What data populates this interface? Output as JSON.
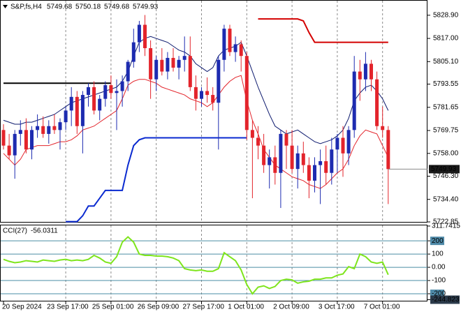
{
  "chart_data": [
    {
      "type": "candlestick",
      "title": "S&P,fs,H4",
      "ohlc": [
        5749.68,
        5750.18,
        5749.68,
        5749.93
      ],
      "categories": [
        "20 Sep 2024",
        null,
        null,
        null,
        null,
        null,
        null,
        null,
        null,
        null,
        null,
        "23 Sep 17:00",
        null,
        null,
        null,
        null,
        null,
        null,
        null,
        "25 Sep 01:00",
        null,
        null,
        null,
        null,
        null,
        null,
        null,
        "26 Sep 09:00",
        null,
        null,
        null,
        null,
        null,
        null,
        null,
        "27 Sep 17:00",
        null,
        null,
        null,
        null,
        null,
        null,
        null,
        "1 Oct 01:00",
        null,
        null,
        null,
        null,
        null,
        null,
        null,
        "2 Oct 09:00",
        null,
        null,
        null,
        null,
        null,
        null,
        null,
        "3 Oct 17:00",
        null,
        null,
        null,
        null,
        null,
        null,
        null,
        "7 Oct 01:00",
        null
      ],
      "open": [
        5770,
        5762,
        5757,
        5768,
        5770,
        5760,
        5770,
        5772,
        5768,
        5772,
        5770,
        5774,
        5780,
        5787,
        5772,
        5788,
        5792,
        5780,
        5786,
        5793,
        5789,
        5790,
        5795,
        5805,
        5815,
        5824,
        5812,
        5796,
        5806,
        5800,
        5807,
        5802,
        5806,
        5808,
        5792,
        5786,
        5790,
        5788,
        5784,
        5806,
        5822,
        5810,
        5814,
        5808,
        5770,
        5766,
        5762,
        5752,
        5756,
        5748,
        5768,
        5762,
        5750,
        5758,
        5752,
        5744,
        5752,
        5754,
        5748,
        5760,
        5766,
        5758,
        5770,
        5800,
        5796,
        5804,
        5796,
        5772,
        5770
      ],
      "high": [
        5773,
        5768,
        5770,
        5775,
        5776,
        5772,
        5778,
        5777,
        5775,
        5778,
        5776,
        5782,
        5792,
        5790,
        5790,
        5794,
        5795,
        5788,
        5795,
        5798,
        5796,
        5798,
        5806,
        5822,
        5826,
        5829,
        5816,
        5808,
        5812,
        5810,
        5812,
        5808,
        5818,
        5818,
        5798,
        5792,
        5797,
        5792,
        5808,
        5824,
        5824,
        5818,
        5816,
        5810,
        5775,
        5772,
        5768,
        5760,
        5762,
        5770,
        5770,
        5770,
        5762,
        5764,
        5756,
        5756,
        5760,
        5762,
        5766,
        5768,
        5772,
        5772,
        5808,
        5806,
        5810,
        5806,
        5800,
        5782,
        5772
      ],
      "low": [
        5760,
        5755,
        5745,
        5762,
        5758,
        5755,
        5766,
        5766,
        5763,
        5768,
        5760,
        5770,
        5772,
        5768,
        5758,
        5782,
        5778,
        5775,
        5782,
        5786,
        5770,
        5782,
        5790,
        5802,
        5810,
        5808,
        5786,
        5790,
        5798,
        5796,
        5800,
        5796,
        5800,
        5790,
        5780,
        5782,
        5784,
        5780,
        5760,
        5800,
        5808,
        5805,
        5800,
        5765,
        5735,
        5755,
        5748,
        5740,
        5742,
        5730,
        5750,
        5748,
        5740,
        5748,
        5735,
        5738,
        5732,
        5742,
        5742,
        5748,
        5746,
        5752,
        5766,
        5785,
        5790,
        5790,
        5770,
        5766,
        5732
      ],
      "close": [
        5762,
        5757,
        5768,
        5770,
        5760,
        5770,
        5772,
        5768,
        5772,
        5770,
        5774,
        5780,
        5787,
        5772,
        5788,
        5792,
        5780,
        5786,
        5793,
        5789,
        5790,
        5795,
        5805,
        5815,
        5824,
        5812,
        5796,
        5806,
        5800,
        5807,
        5802,
        5806,
        5808,
        5792,
        5786,
        5790,
        5788,
        5784,
        5806,
        5822,
        5810,
        5814,
        5808,
        5770,
        5766,
        5762,
        5752,
        5756,
        5748,
        5768,
        5762,
        5750,
        5758,
        5752,
        5744,
        5752,
        5754,
        5748,
        5760,
        5766,
        5758,
        5770,
        5800,
        5796,
        5804,
        5796,
        5772,
        5770,
        5749.93
      ],
      "up_color": "#1d2bb0",
      "down_color": "#e3242b",
      "series": [
        {
          "color": "#0d1a6e",
          "values": [
            5775,
            5774,
            5773,
            5773,
            5774,
            5774,
            5775,
            5776,
            5777,
            5778,
            5780,
            5782,
            5784,
            5785,
            5786,
            5787,
            5788,
            5789,
            5790,
            5791,
            5792,
            5795,
            5800,
            5808,
            5815,
            5817,
            5818,
            5817,
            5816,
            5815,
            5813,
            5811,
            5810,
            5808,
            5804,
            5802,
            5800,
            5802,
            5808,
            5811,
            5812,
            5813,
            5815,
            5808,
            5800,
            5792,
            5785,
            5778,
            5772,
            5770,
            5768,
            5769,
            5770,
            5768,
            5766,
            5764,
            5763,
            5764,
            5765,
            5767,
            5770,
            5776,
            5785,
            5789,
            5792,
            5793,
            5790,
            5786,
            5780
          ]
        },
        {
          "color": "#e3242b",
          "values": [
            5758,
            5755,
            5752,
            5755,
            5760,
            5761,
            5762,
            5762,
            5762,
            5763,
            5764,
            5764,
            5765,
            5767,
            5770,
            5771,
            5772,
            5774,
            5776,
            5778,
            5780,
            5786,
            5793,
            5795,
            5796,
            5796,
            5795,
            5794,
            5792,
            5791,
            5790,
            5789,
            5788,
            5786,
            5785,
            5784,
            5782,
            5784,
            5788,
            5792,
            5795,
            5797,
            5798,
            5785,
            5775,
            5768,
            5760,
            5756,
            5752,
            5750,
            5748,
            5746,
            5745,
            5744,
            5742,
            5741,
            5740,
            5742,
            5745,
            5748,
            5750,
            5755,
            5762,
            5767,
            5770,
            5769,
            5768,
            5762,
            5756
          ]
        },
        {
          "color": "#000000",
          "values": [
            5794,
            5794,
            5794,
            5794,
            5794,
            5794,
            5794,
            5794,
            5794,
            5794,
            5794,
            5794,
            5794,
            5794,
            5794,
            5794,
            5794,
            5794,
            5794,
            5794,
            null,
            null,
            null,
            null,
            null,
            null,
            null,
            null,
            null,
            null,
            null,
            null,
            null,
            null,
            null,
            null,
            null,
            null,
            null,
            null,
            null,
            null,
            null,
            null,
            null,
            null,
            null,
            null,
            null,
            null,
            null,
            null,
            null,
            null,
            null,
            null,
            null,
            null,
            null,
            null,
            null,
            null,
            null,
            null,
            null,
            null,
            null,
            null,
            null
          ]
        },
        {
          "color": "#d40000",
          "values": [
            null,
            null,
            null,
            null,
            null,
            null,
            null,
            null,
            null,
            null,
            null,
            null,
            null,
            null,
            null,
            null,
            null,
            null,
            null,
            null,
            null,
            null,
            null,
            null,
            null,
            null,
            null,
            null,
            null,
            null,
            null,
            null,
            null,
            null,
            null,
            null,
            null,
            null,
            null,
            null,
            null,
            null,
            null,
            null,
            null,
            5827,
            5827,
            5827,
            5827,
            5827,
            5827,
            5827,
            5827,
            5826,
            5820,
            5815,
            5815,
            5815,
            5815,
            5815,
            5815,
            5815,
            5815,
            5815,
            5815,
            5815,
            5815,
            5815,
            5815
          ]
        },
        {
          "color": "#0a2ad0",
          "values": [
            null,
            null,
            null,
            null,
            null,
            null,
            null,
            null,
            null,
            null,
            null,
            5723,
            5723,
            5723,
            5726,
            5731,
            5731,
            5735,
            5739,
            5739,
            5739,
            5739,
            5752,
            5762,
            5765,
            5766,
            5766,
            5766,
            5766,
            5766,
            5766,
            5766,
            5766,
            5766,
            5766,
            5766,
            5766,
            5766,
            5766,
            5766,
            5766,
            5766,
            5766,
            5766,
            null,
            null,
            null,
            null,
            null,
            null,
            null,
            null,
            null,
            null,
            null,
            null,
            null,
            null,
            null,
            null,
            null,
            null,
            null,
            null,
            null,
            null,
            null,
            null,
            null
          ]
        }
      ],
      "ylim": [
        5722.85,
        5836
      ],
      "yticks": [
        {
          "value": 5828.9,
          "label": "5828.90"
        },
        {
          "value": 5817,
          "label": "5817.00"
        },
        {
          "value": 5805.1,
          "label": "5805.10"
        },
        5793.55,
        5781.65,
        {
          "value": 5769.75,
          "label": "5769.75"
        },
        {
          "value": 5758,
          "label": "5758.00"
        },
        {
          "value": 5746.3,
          "label": "5746.30"
        },
        {
          "value": 5734.4,
          "label": "5734.40"
        },
        5722.85
      ],
      "grid": "x"
    },
    {
      "type": "line",
      "title": "CCI(27)",
      "series": [
        {
          "color": "#7ee51c",
          "values": [
            60,
            45,
            35,
            40,
            50,
            45,
            40,
            55,
            50,
            45,
            55,
            60,
            50,
            55,
            50,
            60,
            90,
            70,
            40,
            30,
            80,
            190,
            230,
            190,
            100,
            90,
            90,
            85,
            85,
            80,
            70,
            50,
            -10,
            -20,
            -25,
            -20,
            -30,
            -30,
            -10,
            110,
            80,
            50,
            -20,
            -130,
            -200,
            -150,
            -140,
            -160,
            -145,
            -100,
            -90,
            -95,
            -120,
            -110,
            -105,
            -90,
            -90,
            -80,
            -80,
            -60,
            -50,
            5,
            -10,
            100,
            80,
            40,
            30,
            40,
            -56.0311
          ]
        }
      ],
      "ylim": [
        -258,
        322
      ],
      "yticks": [
        311.7415,
        200,
        100,
        {
          "value": 0,
          "label": "0.00"
        },
        -100,
        -200,
        -244.823
      ],
      "grid": "levels"
    }
  ]
}
